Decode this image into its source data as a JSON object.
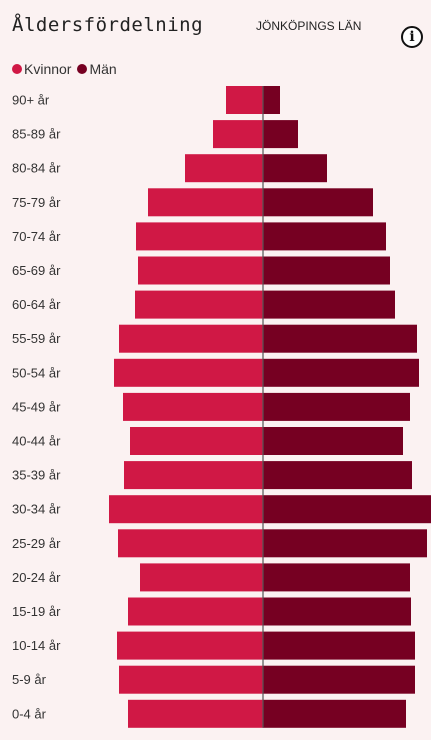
{
  "title": "Åldersfördelning",
  "region": "JÖNKÖPINGS LÄN",
  "info_icon": "info-icon",
  "colors": {
    "women": "#d01845",
    "men": "#760022",
    "axis": "#555555",
    "background": "#fbf2f2"
  },
  "legend": [
    {
      "label": "Kvinnor",
      "color": "#d01845"
    },
    {
      "label": "Män",
      "color": "#760022"
    }
  ],
  "chart_data": {
    "type": "bar",
    "orientation": "population-pyramid",
    "categories": [
      "90+ år",
      "85-89 år",
      "80-84 år",
      "75-79 år",
      "70-74 år",
      "65-69 år",
      "60-64 år",
      "55-59 år",
      "50-54 år",
      "45-49 år",
      "40-44 år",
      "35-39 år",
      "30-34 år",
      "25-29 år",
      "20-24 år",
      "15-19 år",
      "10-14 år",
      "5-9 år",
      "0-4 år"
    ],
    "series": [
      {
        "name": "Kvinnor",
        "values": [
          37,
          50,
          78,
          115,
          127,
          125,
          128,
          144,
          149,
          140,
          133,
          139,
          154,
          145,
          123,
          135,
          146,
          144,
          135
        ]
      },
      {
        "name": "Män",
        "values": [
          17,
          35,
          64,
          110,
          123,
          127,
          132,
          154,
          156,
          147,
          140,
          149,
          168,
          164,
          147,
          148,
          152,
          152,
          143
        ]
      }
    ],
    "axis_max": 170,
    "legend_position": "top-left",
    "grid": false
  }
}
